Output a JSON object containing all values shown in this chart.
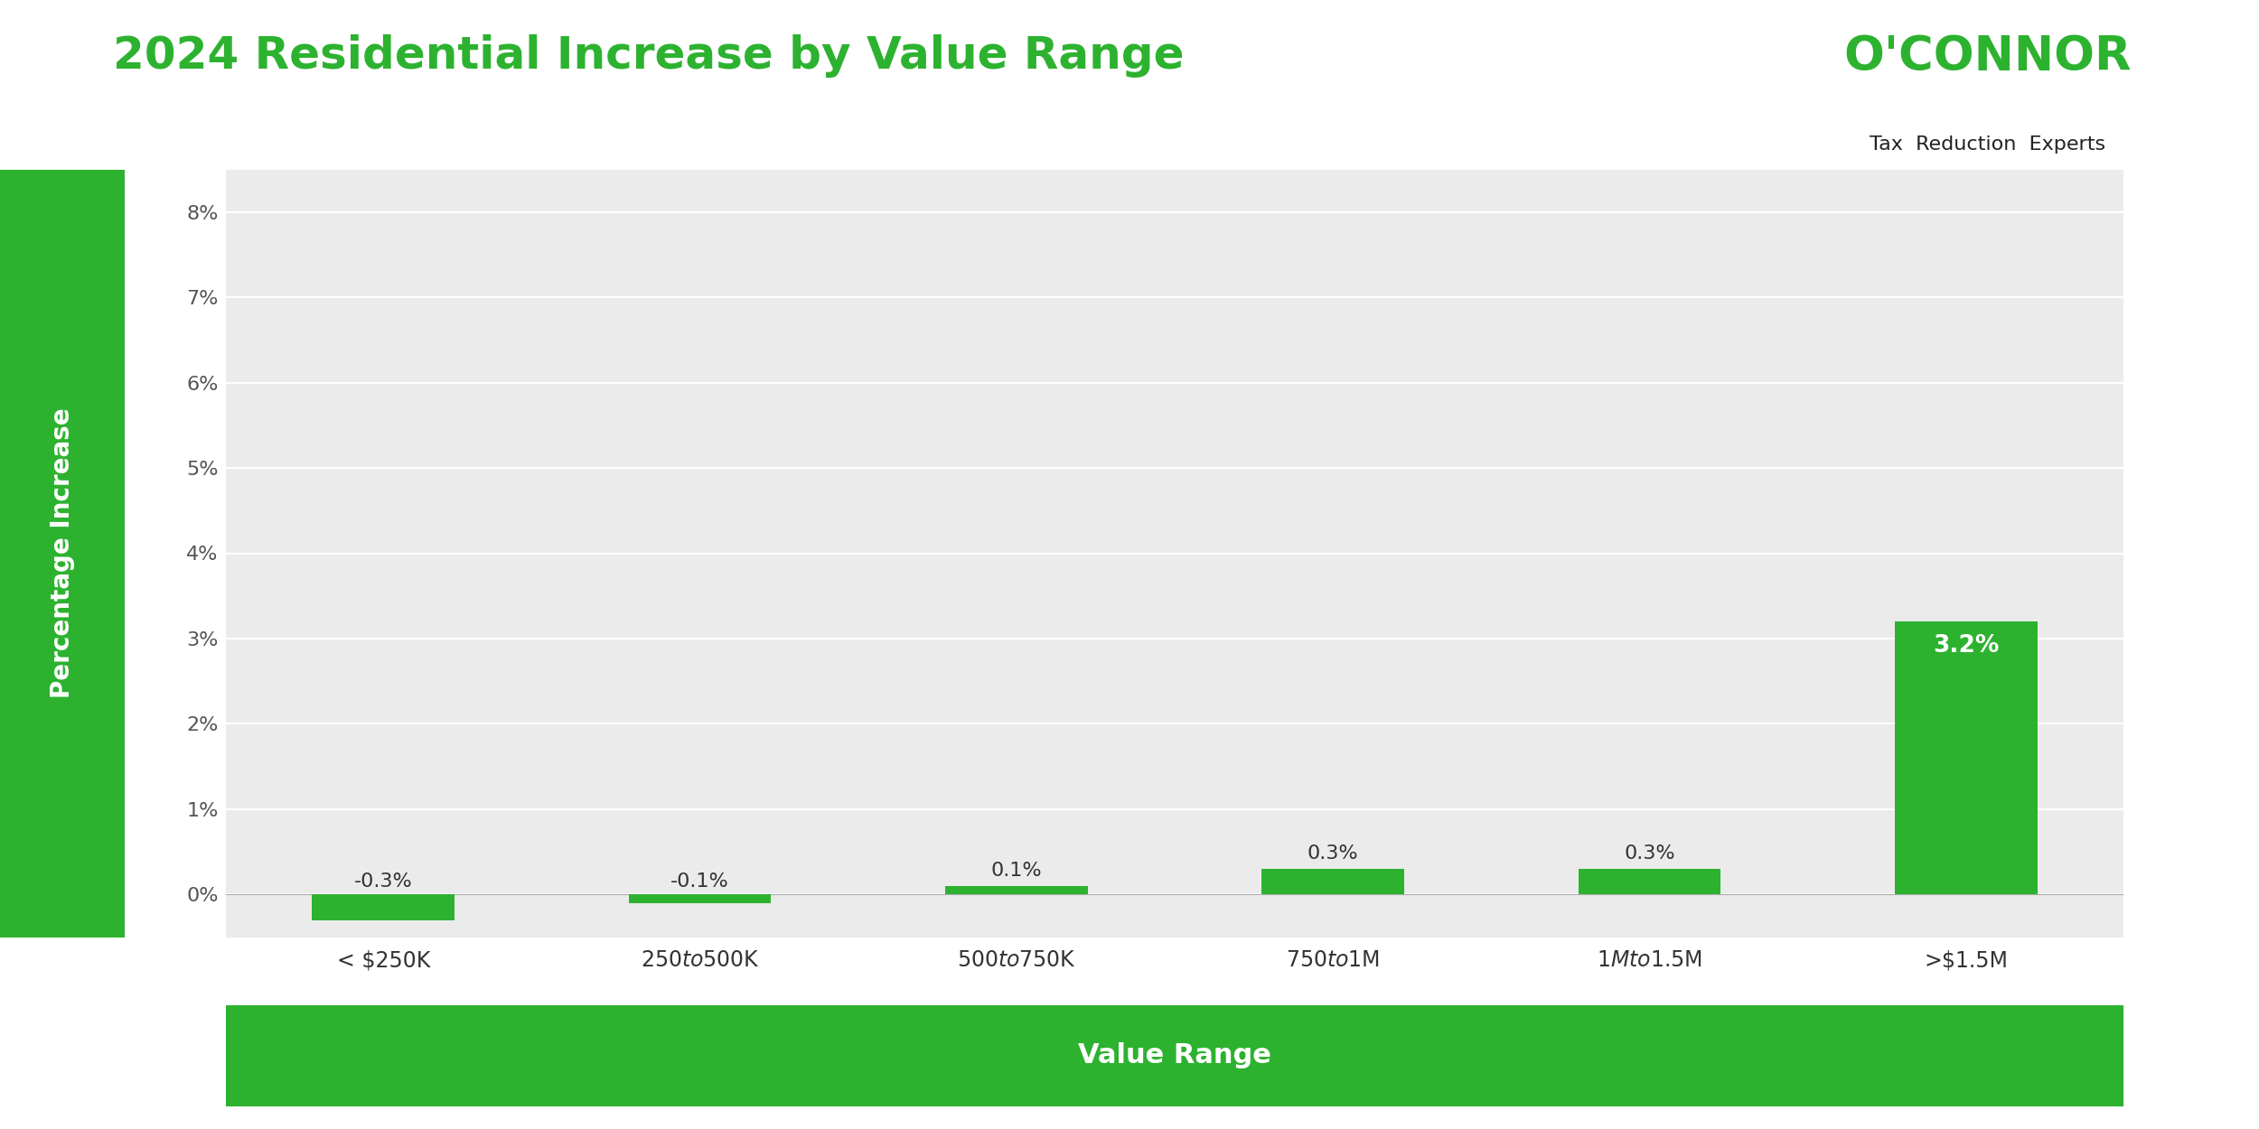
{
  "title": "2024 Residential Increase by Value Range",
  "categories": [
    "< $250K",
    "$250 to $500K",
    "$500 to $750K",
    "$750 to $1M",
    "$1M to $1.5M",
    ">$1.5M"
  ],
  "values": [
    -0.3,
    -0.1,
    0.1,
    0.3,
    0.3,
    3.2
  ],
  "labels": [
    "-0.3%",
    "-0.1%",
    "0.1%",
    "0.3%",
    "0.3%",
    "3.2%"
  ],
  "bar_color": "#2db230",
  "ylabel": "Percentage Increase",
  "xlabel": "Value Range",
  "ylim": [
    -0.5,
    8.5
  ],
  "yticks": [
    0,
    1,
    2,
    3,
    4,
    5,
    6,
    7,
    8
  ],
  "ytick_labels": [
    "0%",
    "1%",
    "2%",
    "3%",
    "4%",
    "5%",
    "6%",
    "7%",
    "8%"
  ],
  "background_color": "#ffffff",
  "plot_bg_color": "#ebebeb",
  "grid_color": "#ffffff",
  "title_color": "#2db230",
  "ylabel_bg_color": "#2db230",
  "xlabel_bg_color": "#2db230",
  "label_fontsize": 18,
  "title_fontsize": 36,
  "tick_fontsize": 16,
  "bar_label_fontsize": 16,
  "logo_text_main": "O'CONNOR",
  "logo_text_sub": "Tax  Reduction  Experts"
}
